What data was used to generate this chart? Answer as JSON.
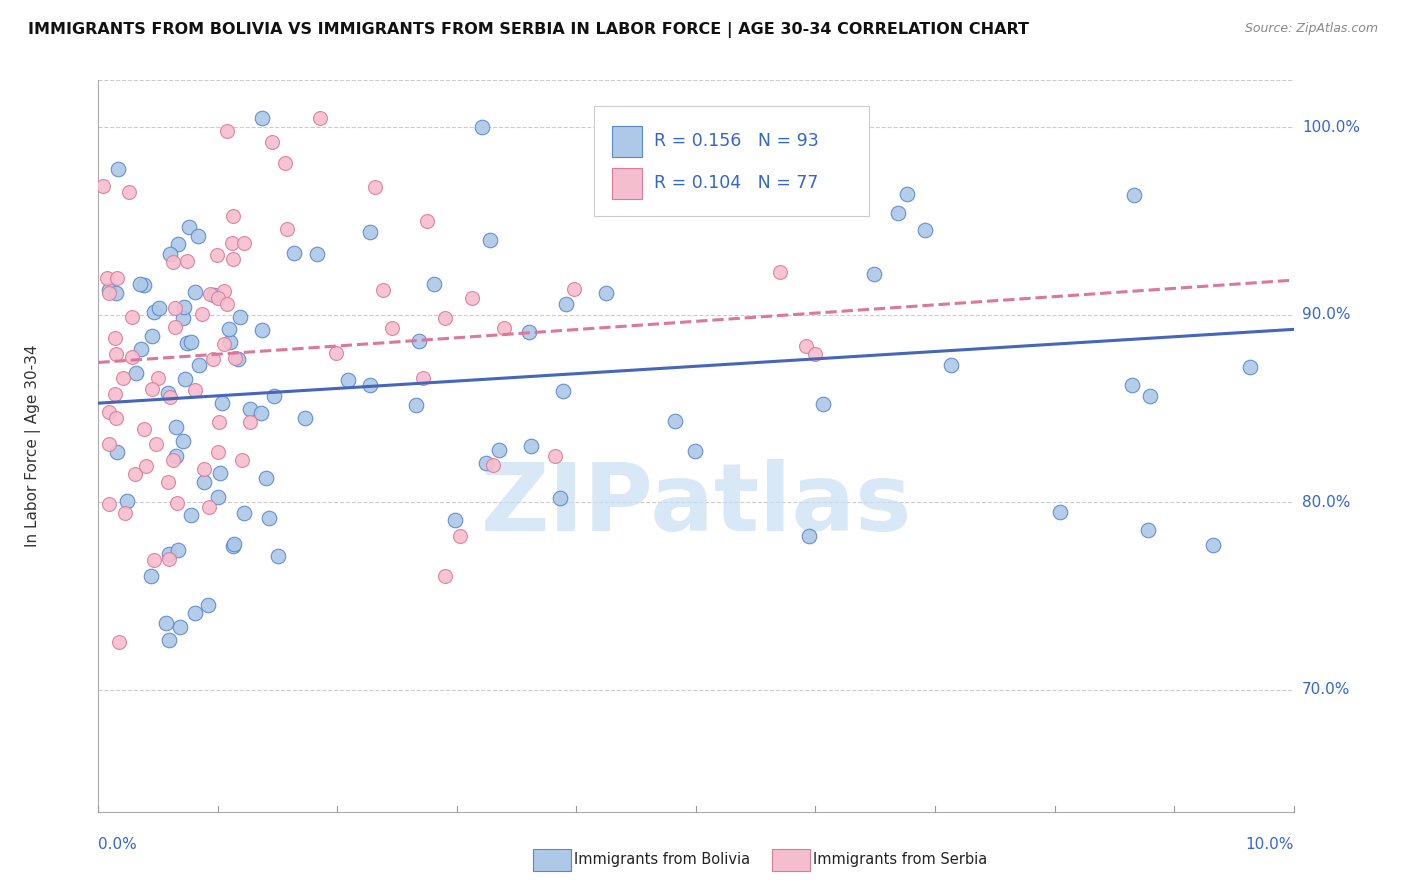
{
  "title": "IMMIGRANTS FROM BOLIVIA VS IMMIGRANTS FROM SERBIA IN LABOR FORCE | AGE 30-34 CORRELATION CHART",
  "source": "Source: ZipAtlas.com",
  "ylabel": "In Labor Force | Age 30-34",
  "yticks": [
    "70.0%",
    "80.0%",
    "90.0%",
    "100.0%"
  ],
  "ytick_vals": [
    0.7,
    0.8,
    0.9,
    1.0
  ],
  "xmin": 0.0,
  "xmax": 0.1,
  "ymin": 0.635,
  "ymax": 1.025,
  "bolivia_color": "#aec8e8",
  "bolivia_edge": "#5588cc",
  "serbia_color": "#f5bece",
  "serbia_edge": "#e07898",
  "bolivia_R": 0.156,
  "bolivia_N": 93,
  "serbia_R": 0.104,
  "serbia_N": 77,
  "bolivia_line_color": "#4466bb",
  "serbia_line_color": "#dd7799",
  "legend_color": "#3366cc",
  "watermark_color": "#c8dff5",
  "grid_color": "#cccccc",
  "background": "#ffffff",
  "tick_color": "#3366cc"
}
